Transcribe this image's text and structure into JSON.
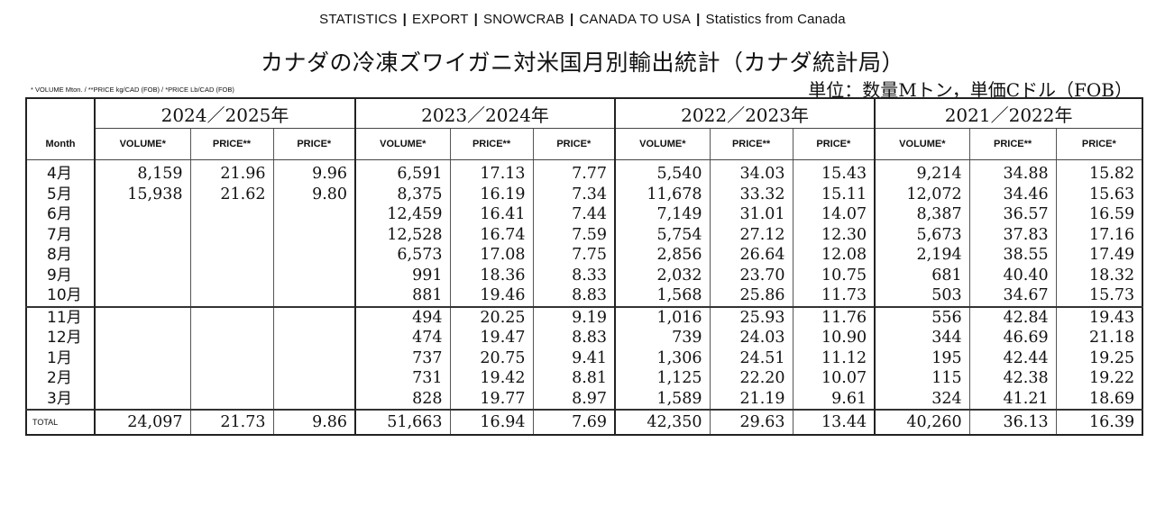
{
  "breadcrumb": {
    "items": [
      "STATISTICS",
      "EXPORT",
      "SNOWCRAB",
      "CANADA TO USA",
      "Statistics from Canada"
    ],
    "separator": "|"
  },
  "title": "カナダの冷凍ズワイガニ対米国月別輸出統計（カナダ統計局）",
  "note_left": "* VOLUME Mton. / **PRICE kg/CAD (FOB) / *PRICE Lb/CAD (FOB)",
  "unit_right": "単位：数量Mトン，単価Cドル（FOB）",
  "table": {
    "year_headers": [
      "2024／2025年",
      "2023／2024年",
      "2022／2023年",
      "2021／2022年"
    ],
    "month_header": "Month",
    "col_headers": [
      "VOLUME*",
      "PRICE**",
      "PRICE*"
    ],
    "rows": [
      {
        "month": "4月",
        "values": [
          "8,159",
          "21.96",
          "9.96",
          "6,591",
          "17.13",
          "7.77",
          "5,540",
          "34.03",
          "15.43",
          "9,214",
          "34.88",
          "15.82"
        ]
      },
      {
        "month": "5月",
        "values": [
          "15,938",
          "21.62",
          "9.80",
          "8,375",
          "16.19",
          "7.34",
          "11,678",
          "33.32",
          "15.11",
          "12,072",
          "34.46",
          "15.63"
        ]
      },
      {
        "month": "6月",
        "values": [
          "",
          "",
          "",
          "12,459",
          "16.41",
          "7.44",
          "7,149",
          "31.01",
          "14.07",
          "8,387",
          "36.57",
          "16.59"
        ]
      },
      {
        "month": "7月",
        "values": [
          "",
          "",
          "",
          "12,528",
          "16.74",
          "7.59",
          "5,754",
          "27.12",
          "12.30",
          "5,673",
          "37.83",
          "17.16"
        ]
      },
      {
        "month": "8月",
        "values": [
          "",
          "",
          "",
          "6,573",
          "17.08",
          "7.75",
          "2,856",
          "26.64",
          "12.08",
          "2,194",
          "38.55",
          "17.49"
        ]
      },
      {
        "month": "9月",
        "values": [
          "",
          "",
          "",
          "991",
          "18.36",
          "8.33",
          "2,032",
          "23.70",
          "10.75",
          "681",
          "40.40",
          "18.32"
        ]
      },
      {
        "month": "10月",
        "values": [
          "",
          "",
          "",
          "881",
          "19.46",
          "8.83",
          "1,568",
          "25.86",
          "11.73",
          "503",
          "34.67",
          "15.73"
        ]
      },
      {
        "month": "11月",
        "values": [
          "",
          "",
          "",
          "494",
          "20.25",
          "9.19",
          "1,016",
          "25.93",
          "11.76",
          "556",
          "42.84",
          "19.43"
        ]
      },
      {
        "month": "12月",
        "values": [
          "",
          "",
          "",
          "474",
          "19.47",
          "8.83",
          "739",
          "24.03",
          "10.90",
          "344",
          "46.69",
          "21.18"
        ]
      },
      {
        "month": "1月",
        "values": [
          "",
          "",
          "",
          "737",
          "20.75",
          "9.41",
          "1,306",
          "24.51",
          "11.12",
          "195",
          "42.44",
          "19.25"
        ]
      },
      {
        "month": "2月",
        "values": [
          "",
          "",
          "",
          "731",
          "19.42",
          "8.81",
          "1,125",
          "22.20",
          "10.07",
          "115",
          "42.38",
          "19.22"
        ]
      },
      {
        "month": "3月",
        "values": [
          "",
          "",
          "",
          "828",
          "19.77",
          "8.97",
          "1,589",
          "21.19",
          "9.61",
          "324",
          "41.21",
          "18.69"
        ]
      }
    ],
    "total": {
      "label": "TOTAL",
      "values": [
        "24,097",
        "21.73",
        "9.86",
        "51,663",
        "16.94",
        "7.69",
        "42,350",
        "29.63",
        "13.44",
        "40,260",
        "36.13",
        "16.39"
      ]
    }
  }
}
